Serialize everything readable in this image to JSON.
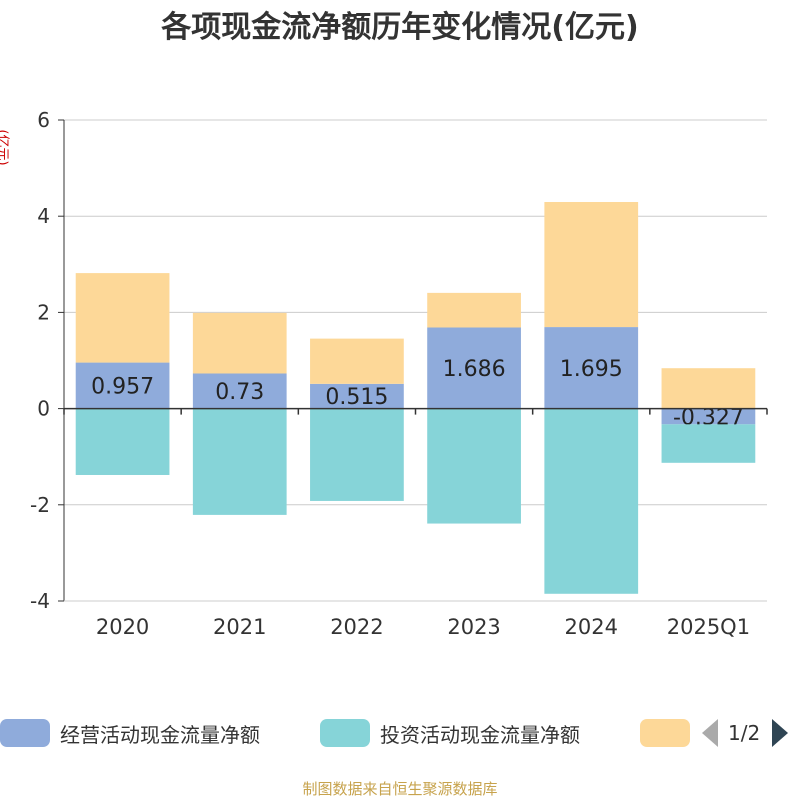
{
  "title": "各项现金流净额历年变化情况(亿元)",
  "ylabel": "(亿元)",
  "chart_data": {
    "type": "bar",
    "stacked": true,
    "categories": [
      "2020",
      "2021",
      "2022",
      "2023",
      "2024",
      "2025Q1"
    ],
    "series": [
      {
        "name": "经营活动现金流量净额",
        "color": "#8fabdb",
        "values": [
          0.957,
          0.73,
          0.515,
          1.686,
          1.695,
          -0.327
        ],
        "show_labels": true
      },
      {
        "name": "投资活动现金流量净额",
        "color": "#86d4d8",
        "values": [
          -1.38,
          -2.21,
          -1.92,
          -2.39,
          -3.85,
          -0.8
        ],
        "show_labels": false
      },
      {
        "name": "",
        "color": "#fdd898",
        "values": [
          1.86,
          1.26,
          0.94,
          0.72,
          2.6,
          0.84
        ],
        "show_labels": false
      }
    ],
    "ylim": [
      -4,
      6
    ],
    "yticks": [
      -4,
      -2,
      0,
      2,
      4,
      6
    ],
    "grid": true,
    "legend_position": "bottom"
  },
  "legend": {
    "page": "1/2"
  },
  "source": "制图数据来自恒生聚源数据库"
}
